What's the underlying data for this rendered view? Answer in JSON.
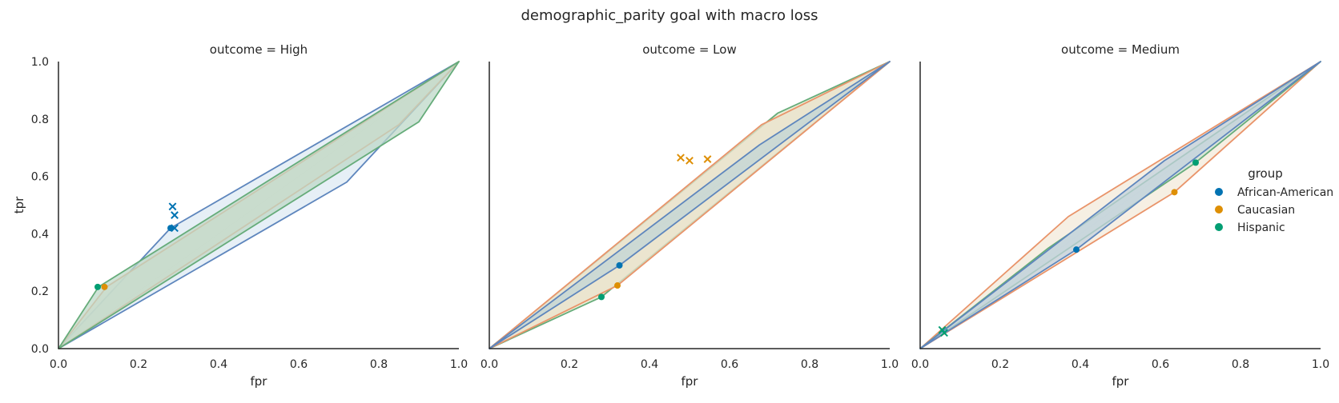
{
  "chart_data": {
    "type": "scatter",
    "title": "demographic_parity goal with macro loss",
    "xlabel": "fpr",
    "ylabel": "tpr",
    "xlim": [
      0,
      1
    ],
    "ylim": [
      0,
      1
    ],
    "xticks": [
      "0.0",
      "0.2",
      "0.4",
      "0.6",
      "0.8",
      "1.0"
    ],
    "yticks": [
      "0.0",
      "0.2",
      "0.4",
      "0.6",
      "0.8",
      "1.0"
    ],
    "grid": false,
    "legend": {
      "title": "group",
      "placement": "right",
      "entries": [
        {
          "name": "African-American",
          "color": "#0173b2"
        },
        {
          "name": "Caucasian",
          "color": "#de8f05"
        },
        {
          "name": "Hispanic",
          "color": "#029e73"
        }
      ]
    },
    "hull_colors": {
      "African-American": "#5e86bd",
      "Caucasian": "#e9946a",
      "Hispanic": "#66ac7a"
    },
    "panels": [
      {
        "title": "outcome = High",
        "hulls": [
          {
            "group": "African-American",
            "fill": "#dde9f3",
            "points": [
              [
                0,
                0
              ],
              [
                0.28,
                0.42
              ],
              [
                1,
                1
              ],
              [
                0.72,
                0.58
              ]
            ]
          },
          {
            "group": "Caucasian",
            "fill": "#eee4d2",
            "points": [
              [
                0,
                0
              ],
              [
                0.12,
                0.215
              ],
              [
                1,
                1
              ],
              [
                0.85,
                0.78
              ]
            ]
          },
          {
            "group": "Hispanic",
            "fill": "#bdd8c8",
            "points": [
              [
                0,
                0
              ],
              [
                0.1,
                0.215
              ],
              [
                1,
                1
              ],
              [
                0.9,
                0.79
              ]
            ]
          }
        ],
        "points": [
          {
            "group": "African-American",
            "fpr": 0.28,
            "tpr": 0.42
          },
          {
            "group": "Caucasian",
            "fpr": 0.115,
            "tpr": 0.215
          },
          {
            "group": "Hispanic",
            "fpr": 0.098,
            "tpr": 0.215
          }
        ],
        "crosses": [
          {
            "group": "African-American",
            "fpr": 0.285,
            "tpr": 0.495
          },
          {
            "group": "African-American",
            "fpr": 0.29,
            "tpr": 0.465
          },
          {
            "group": "African-American",
            "fpr": 0.29,
            "tpr": 0.42
          }
        ]
      },
      {
        "title": "outcome = Low",
        "hulls": [
          {
            "group": "Hispanic",
            "fill": "#e1e7c9",
            "points": [
              [
                0,
                0
              ],
              [
                0.28,
                0.18
              ],
              [
                1,
                1
              ],
              [
                0.72,
                0.82
              ]
            ]
          },
          {
            "group": "Caucasian",
            "fill": "#ebe2cc",
            "points": [
              [
                0,
                0
              ],
              [
                0.32,
                0.22
              ],
              [
                1,
                1
              ],
              [
                0.68,
                0.78
              ]
            ]
          },
          {
            "group": "African-American",
            "fill": "#c2d4d6",
            "points": [
              [
                0,
                0
              ],
              [
                0.325,
                0.29
              ],
              [
                1,
                1
              ],
              [
                0.675,
                0.71
              ]
            ]
          }
        ],
        "points": [
          {
            "group": "African-American",
            "fpr": 0.325,
            "tpr": 0.29
          },
          {
            "group": "Caucasian",
            "fpr": 0.32,
            "tpr": 0.22
          },
          {
            "group": "Hispanic",
            "fpr": 0.28,
            "tpr": 0.18
          }
        ],
        "crosses": [
          {
            "group": "Caucasian",
            "fpr": 0.478,
            "tpr": 0.665
          },
          {
            "group": "Caucasian",
            "fpr": 0.5,
            "tpr": 0.655
          },
          {
            "group": "Caucasian",
            "fpr": 0.545,
            "tpr": 0.66
          }
        ]
      },
      {
        "title": "outcome = Medium",
        "hulls": [
          {
            "group": "Caucasian",
            "fill": "#f3ead9",
            "points": [
              [
                0,
                0
              ],
              [
                0.37,
                0.46
              ],
              [
                1,
                1
              ],
              [
                0.635,
                0.545
              ]
            ]
          },
          {
            "group": "Hispanic",
            "fill": "#cfe1d4",
            "points": [
              [
                0,
                0
              ],
              [
                0.32,
                0.35
              ],
              [
                1,
                1
              ],
              [
                0.685,
                0.645
              ]
            ]
          },
          {
            "group": "African-American",
            "fill": "#c3d1dd",
            "points": [
              [
                0,
                0
              ],
              [
                0.39,
                0.345
              ],
              [
                1,
                1
              ],
              [
                0.61,
                0.655
              ]
            ]
          }
        ],
        "points": [
          {
            "group": "African-American",
            "fpr": 0.39,
            "tpr": 0.345
          },
          {
            "group": "Caucasian",
            "fpr": 0.635,
            "tpr": 0.545
          },
          {
            "group": "Hispanic",
            "fpr": 0.688,
            "tpr": 0.648
          }
        ],
        "crosses": [
          {
            "group": "Hispanic",
            "fpr": 0.055,
            "tpr": 0.065
          },
          {
            "group": "Hispanic",
            "fpr": 0.06,
            "tpr": 0.055
          }
        ]
      }
    ]
  }
}
